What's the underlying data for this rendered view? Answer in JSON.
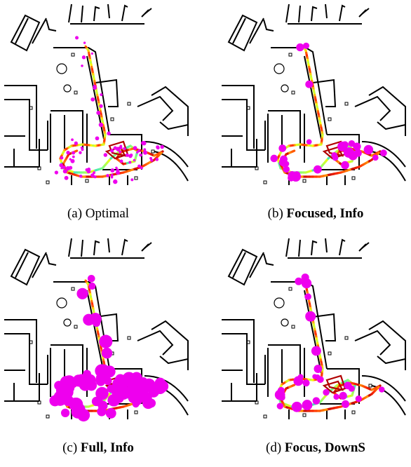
{
  "figure": {
    "panels": [
      {
        "id": "a",
        "label": "(a)",
        "title": "Optimal",
        "title_bold": false,
        "marker_style": "small-dense"
      },
      {
        "id": "b",
        "label": "(b)",
        "title": "Focused, Info",
        "title_bold": true,
        "marker_style": "medium-sparse"
      },
      {
        "id": "c",
        "label": "(c)",
        "title": "Full, Info",
        "title_bold": true,
        "marker_style": "large-dense"
      },
      {
        "id": "d",
        "label": "(d)",
        "title": "Focus, DownS",
        "title_bold": true,
        "marker_style": "medium-sparse"
      }
    ],
    "colors": {
      "walls": "#000000",
      "markers": "#ee00ee",
      "trajectory_gradient": [
        "#00c8ff",
        "#7fff7f",
        "#ffff00",
        "#ff8c00",
        "#ff2a00",
        "#b00000"
      ]
    }
  }
}
